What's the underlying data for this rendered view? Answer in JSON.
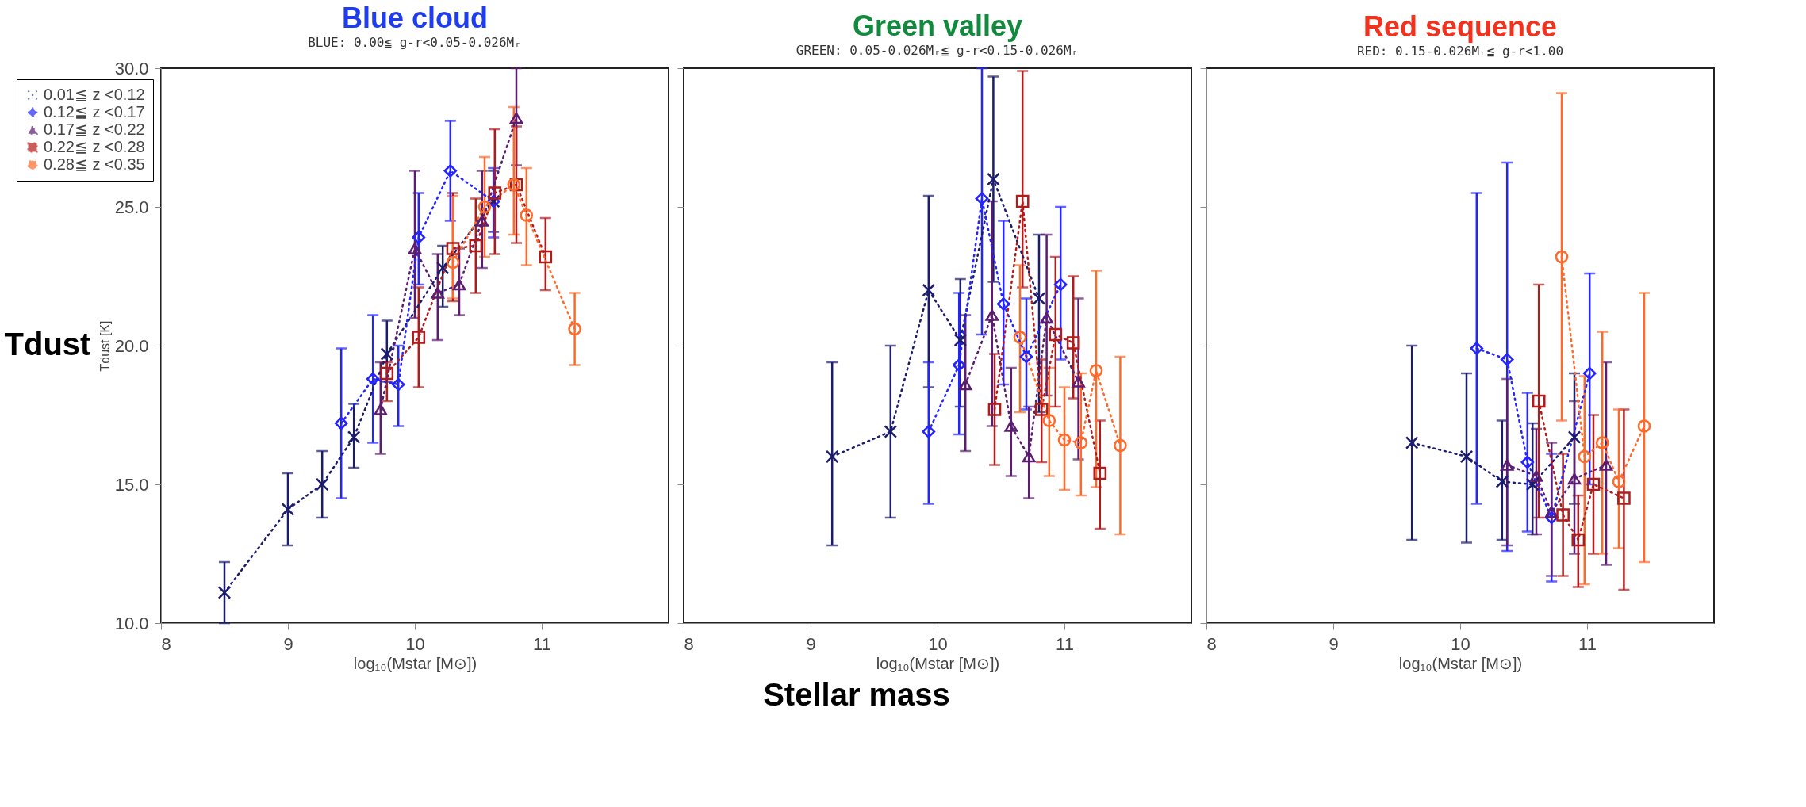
{
  "chart_data": [
    {
      "type": "line",
      "title": "Blue cloud",
      "subtitle": "BLUE: 0.00≦ g-r<0.05-0.026Mᵣ",
      "xlabel": "log₁₀(Mstar [M⊙])",
      "ylabel": "Tdust [K]",
      "xlim": [
        8,
        12
      ],
      "ylim": [
        10,
        30
      ],
      "xticks": [
        8,
        9,
        10,
        11
      ],
      "yticks": [
        {
          "value": 10,
          "label": "10.0"
        },
        {
          "value": 15,
          "label": "15.0"
        },
        {
          "value": 20,
          "label": "20.0"
        },
        {
          "value": 25,
          "label": "25.0"
        },
        {
          "value": 30,
          "label": "30.0"
        }
      ],
      "grid": false,
      "legend": "top left",
      "line_style": "dotted",
      "annotations": [
        "Tdust",
        "Stellar mass"
      ],
      "series": [
        {
          "name": "0.01≦ z <0.12",
          "color": "#1c1c6e",
          "marker": "cross",
          "x": [
            8.5,
            9.0,
            9.27,
            9.52,
            9.78,
            10.22,
            10.62
          ],
          "values": [
            11.1,
            14.1,
            15.0,
            16.7,
            19.7,
            22.8,
            25.2
          ],
          "errors": [
            [
              10.0,
              12.2
            ],
            [
              12.8,
              15.4
            ],
            [
              13.8,
              16.2
            ],
            [
              15.6,
              17.9
            ],
            [
              18.7,
              20.9
            ],
            [
              21.4,
              23.6
            ],
            [
              24.1,
              26.3
            ]
          ]
        },
        {
          "name": "0.12≦ z <0.17",
          "color": "#2424ff",
          "marker": "diamond",
          "x": [
            9.42,
            9.67,
            9.87,
            10.03,
            10.28,
            10.62
          ],
          "values": [
            17.2,
            18.8,
            18.6,
            23.9,
            26.3,
            25.2
          ],
          "errors": [
            [
              14.5,
              19.9
            ],
            [
              16.5,
              21.1
            ],
            [
              17.1,
              20.0
            ],
            [
              22.2,
              25.5
            ],
            [
              24.5,
              28.1
            ],
            [
              23.9,
              26.4
            ]
          ]
        },
        {
          "name": "0.17≦ z <0.22",
          "color": "#5c1c70",
          "marker": "triangle",
          "x": [
            9.73,
            10.0,
            10.18,
            10.35,
            10.53,
            10.8
          ],
          "values": [
            17.7,
            23.5,
            21.9,
            22.2,
            24.5,
            28.2
          ],
          "errors": [
            [
              16.1,
              19.4
            ],
            [
              21.0,
              26.3
            ],
            [
              20.2,
              23.3
            ],
            [
              21.1,
              23.5
            ],
            [
              22.8,
              26.3
            ],
            [
              26.5,
              30.0
            ]
          ]
        },
        {
          "name": "0.22≦ z <0.28",
          "color": "#b01c1c",
          "marker": "square",
          "x": [
            9.78,
            10.03,
            10.3,
            10.48,
            10.63,
            10.8,
            11.03
          ],
          "values": [
            19.0,
            20.3,
            23.5,
            23.6,
            25.5,
            25.8,
            23.2
          ],
          "errors": [
            [
              18.0,
              19.4
            ],
            [
              18.5,
              22.1
            ],
            [
              21.6,
              25.5
            ],
            [
              21.9,
              25.3
            ],
            [
              23.3,
              27.8
            ],
            [
              23.7,
              27.9
            ],
            [
              22.0,
              24.6
            ]
          ]
        },
        {
          "name": "0.28≦ z <0.35",
          "color": "#ff6a2a",
          "marker": "circle",
          "x": [
            10.3,
            10.55,
            10.78,
            10.88,
            11.26
          ],
          "values": [
            23.0,
            25.0,
            25.8,
            24.7,
            20.6
          ],
          "errors": [
            [
              21.7,
              25.4
            ],
            [
              23.2,
              26.8
            ],
            [
              24.0,
              28.6
            ],
            [
              22.9,
              26.4
            ],
            [
              19.3,
              21.9
            ]
          ]
        }
      ]
    },
    {
      "type": "line",
      "title": "Green valley",
      "subtitle": "GREEN: 0.05-0.026Mᵣ≦ g-r<0.15-0.026Mᵣ",
      "xlabel": "log₁₀(Mstar [M⊙])",
      "xlim": [
        8,
        12
      ],
      "ylim": [
        10,
        30
      ],
      "xticks": [
        8,
        9,
        10,
        11
      ],
      "yticks": [
        10,
        15,
        20,
        25,
        30
      ],
      "tick_labels": "x",
      "grid": false,
      "line_style": "dotted",
      "series": [
        {
          "color": "#1c1c6e",
          "marker": "cross",
          "x": [
            9.17,
            9.63,
            9.93,
            10.18,
            10.44,
            10.8
          ],
          "values": [
            16.0,
            16.9,
            22.0,
            20.2,
            26.0,
            21.7
          ],
          "errors": [
            [
              12.8,
              19.4
            ],
            [
              13.8,
              20.0
            ],
            [
              18.5,
              25.4
            ],
            [
              17.8,
              22.4
            ],
            [
              22.3,
              29.7
            ],
            [
              17.6,
              24.0
            ]
          ]
        },
        {
          "color": "#2424ff",
          "marker": "diamond",
          "x": [
            9.93,
            10.17,
            10.35,
            10.52,
            10.7,
            10.97
          ],
          "values": [
            16.9,
            19.3,
            25.3,
            21.5,
            19.6,
            22.2
          ],
          "errors": [
            [
              14.3,
              19.4
            ],
            [
              16.8,
              21.9
            ],
            [
              20.4,
              30.0
            ],
            [
              18.6,
              24.5
            ],
            [
              17.7,
              21.7
            ],
            [
              19.5,
              25.0
            ]
          ]
        },
        {
          "color": "#5c1c70",
          "marker": "triangle",
          "x": [
            10.22,
            10.43,
            10.58,
            10.72,
            10.86,
            11.11
          ],
          "values": [
            18.6,
            21.1,
            17.1,
            16.0,
            21.0,
            18.7
          ],
          "errors": [
            [
              16.2,
              21.1
            ],
            [
              17.1,
              25.2
            ],
            [
              15.3,
              19.2
            ],
            [
              14.5,
              17.8
            ],
            [
              18.2,
              24.0
            ],
            [
              15.9,
              21.7
            ]
          ]
        },
        {
          "color": "#b01c1c",
          "marker": "square",
          "x": [
            10.45,
            10.67,
            10.82,
            10.93,
            11.07,
            11.28
          ],
          "values": [
            17.7,
            25.2,
            17.7,
            20.4,
            20.1,
            15.4
          ],
          "errors": [
            [
              15.7,
              19.7
            ],
            [
              22.1,
              29.9
            ],
            [
              15.8,
              19.5
            ],
            [
              17.8,
              23.2
            ],
            [
              18.1,
              22.5
            ],
            [
              13.4,
              17.3
            ]
          ]
        },
        {
          "color": "#ff6a2a",
          "marker": "circle",
          "x": [
            10.65,
            10.88,
            11.0,
            11.13,
            11.25,
            11.44
          ],
          "values": [
            20.3,
            17.3,
            16.6,
            16.5,
            19.1,
            16.4
          ],
          "errors": [
            [
              17.6,
              22.9
            ],
            [
              15.3,
              19.2
            ],
            [
              14.8,
              18.5
            ],
            [
              14.6,
              19.0
            ],
            [
              14.9,
              22.7
            ],
            [
              13.2,
              19.6
            ]
          ]
        }
      ]
    },
    {
      "type": "line",
      "title": "Red sequence",
      "subtitle": "RED: 0.15-0.026Mᵣ≦ g-r<1.00",
      "xlabel": "log₁₀(Mstar [M⊙])",
      "xlim": [
        8,
        12
      ],
      "ylim": [
        10,
        30
      ],
      "xticks": [
        8,
        9,
        10,
        11
      ],
      "yticks": [
        10,
        15,
        20,
        25,
        30
      ],
      "tick_labels": "x",
      "grid": false,
      "line_style": "dotted",
      "series": [
        {
          "color": "#1c1c6e",
          "marker": "cross",
          "x": [
            9.62,
            10.05,
            10.33,
            10.57,
            10.9
          ],
          "values": [
            16.5,
            16.0,
            15.1,
            15.0,
            16.7
          ],
          "errors": [
            [
              13.0,
              20.0
            ],
            [
              12.9,
              19.0
            ],
            [
              13.0,
              17.3
            ],
            [
              13.2,
              17.2
            ],
            [
              14.3,
              19.0
            ]
          ]
        },
        {
          "color": "#2424ff",
          "marker": "diamond",
          "x": [
            10.13,
            10.37,
            10.53,
            10.72,
            11.02
          ],
          "values": [
            19.9,
            19.5,
            15.8,
            13.8,
            19.0
          ],
          "errors": [
            [
              14.3,
              25.5
            ],
            [
              12.6,
              26.6
            ],
            [
              13.3,
              18.3
            ],
            [
              11.5,
              16.1
            ],
            [
              15.0,
              22.6
            ]
          ]
        },
        {
          "color": "#5c1c70",
          "marker": "triangle",
          "x": [
            10.37,
            10.6,
            10.72,
            10.9,
            11.15
          ],
          "values": [
            15.7,
            15.3,
            14.0,
            15.2,
            15.7
          ],
          "errors": [
            [
              12.8,
              18.8
            ],
            [
              13.2,
              17.0
            ],
            [
              11.7,
              16.5
            ],
            [
              12.5,
              18.0
            ],
            [
              12.1,
              19.4
            ]
          ]
        },
        {
          "color": "#b01c1c",
          "marker": "square",
          "x": [
            10.62,
            10.81,
            10.93,
            11.05,
            11.29
          ],
          "values": [
            18.0,
            13.9,
            13.0,
            15.0,
            14.5
          ],
          "errors": [
            [
              13.8,
              22.2
            ],
            [
              11.7,
              16.1
            ],
            [
              11.3,
              14.6
            ],
            [
              12.5,
              17.5
            ],
            [
              11.2,
              17.7
            ]
          ]
        },
        {
          "color": "#ff6a2a",
          "marker": "circle",
          "x": [
            10.8,
            10.98,
            11.12,
            11.25,
            11.45
          ],
          "values": [
            23.2,
            16.0,
            16.5,
            15.1,
            17.1
          ],
          "errors": [
            [
              17.3,
              29.1
            ],
            [
              11.4,
              18.9
            ],
            [
              12.5,
              20.5
            ],
            [
              12.7,
              17.7
            ],
            [
              12.2,
              21.9
            ]
          ]
        }
      ]
    }
  ]
}
